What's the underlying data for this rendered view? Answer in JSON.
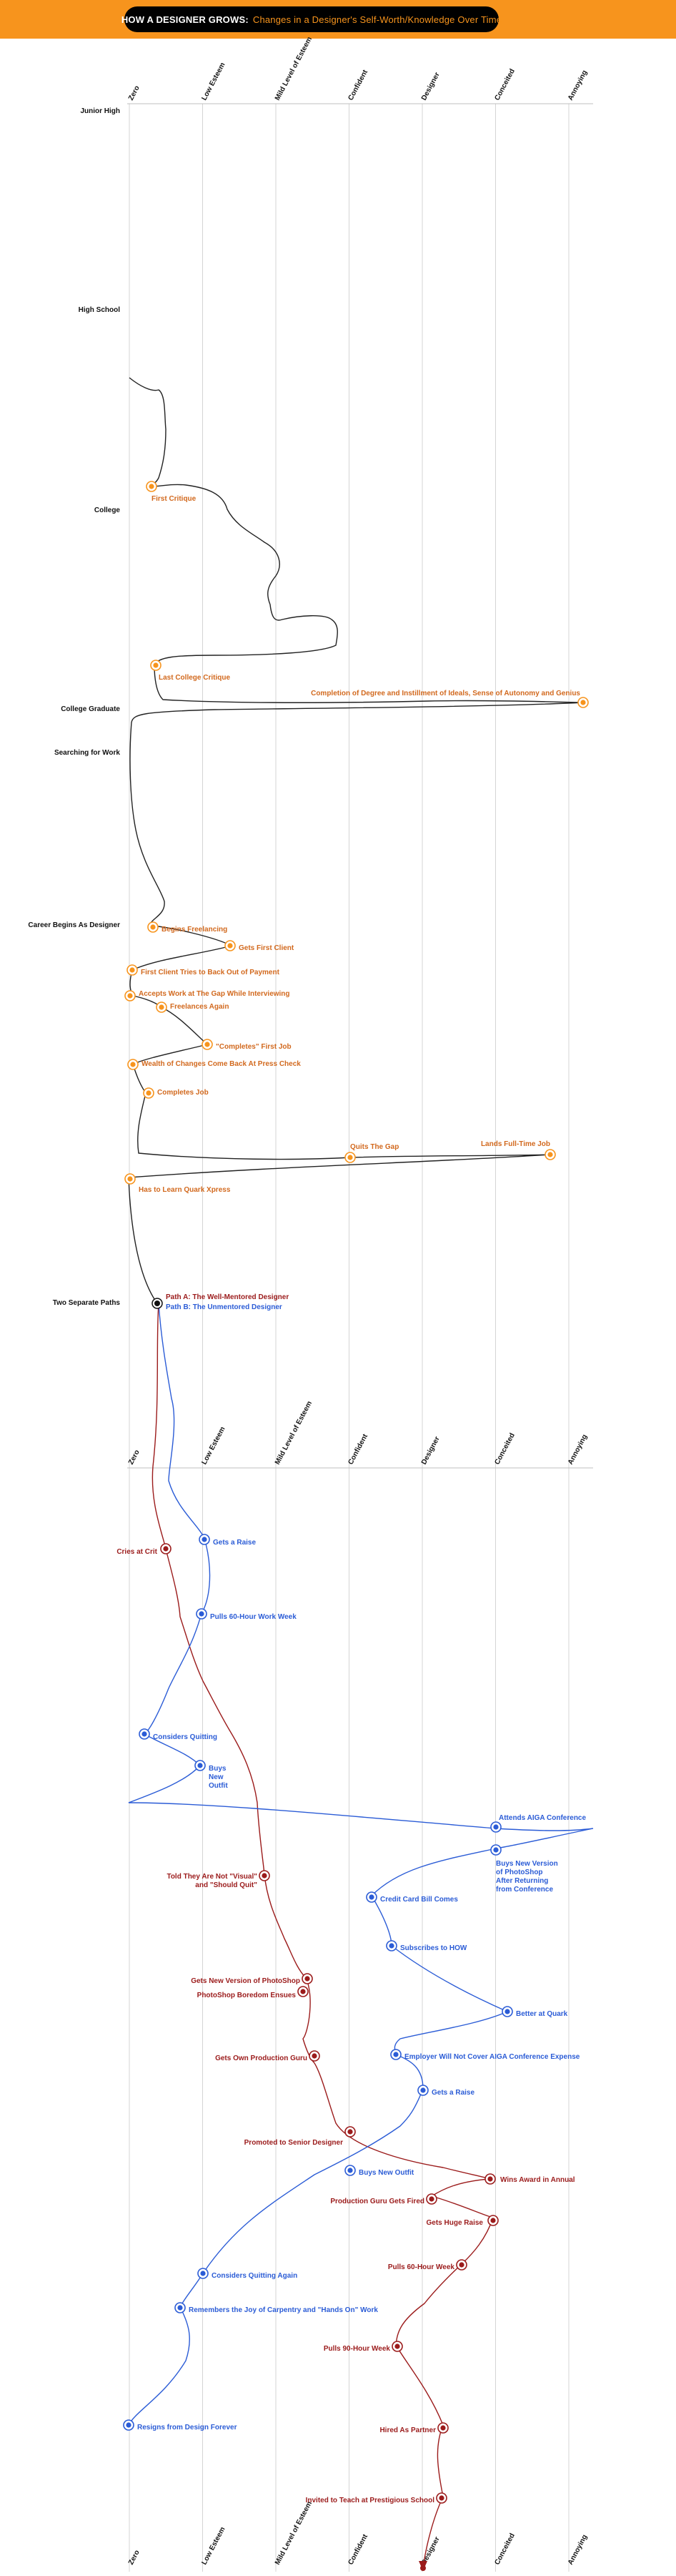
{
  "header": {
    "title": "HOW A DESIGNER GROWS:",
    "subtitle": "Changes in a Designer's Self-Worth/Knowledge Over Time"
  },
  "colors": {
    "banner": "#F7941D",
    "phase1_marker": "#F7941D",
    "phase1_text": "#D2691E",
    "path_a": "#9B1B1B",
    "path_b": "#2B5CD6"
  },
  "chart_data": {
    "type": "line",
    "title": "HOW A DESIGNER GROWS: Changes in a Designer's Self-Worth/Knowledge Over Time",
    "x_levels": [
      "Zero",
      "Low Esteem",
      "Mild Level of Esteem",
      "Confident",
      "Designer",
      "Conceited",
      "Annoying"
    ],
    "xlim": [
      0,
      6
    ],
    "y_axis_direction": "time flows downward",
    "life_stages": [
      "Junior High",
      "High School",
      "College",
      "College Graduate",
      "Searching for Work",
      "Career Begins As Designer",
      "Two Separate Paths"
    ],
    "series": [
      {
        "name": "Early Career",
        "events": [
          {
            "label": "First Critique",
            "value": 0.3
          },
          {
            "label": "Last College Critique",
            "value": 0.35
          },
          {
            "label": "Completion of Degree and Instillment of Ideals, Sense of Autonomy and Genius",
            "value": 6.0
          },
          {
            "label": "Begins Freelancing",
            "value": 0.3
          },
          {
            "label": "Gets First Client",
            "value": 1.35
          },
          {
            "label": "First Client Tries to Back Out of Payment",
            "value": 0.05
          },
          {
            "label": "Accepts Work at The Gap While Interviewing",
            "value": 0.0
          },
          {
            "label": "Freelances Again",
            "value": 0.45
          },
          {
            "label": "\"Completes\" First Job",
            "value": 1.05
          },
          {
            "label": "Wealth of Changes Come Back At Press Check",
            "value": 0.05
          },
          {
            "label": "Completes Job",
            "value": 0.25
          },
          {
            "label": "Quits The Gap",
            "value": 2.95
          },
          {
            "label": "Lands Full-Time Job",
            "value": 5.7
          },
          {
            "label": "Has to Learn Quark Xpress",
            "value": 0.0
          },
          {
            "label": "Two Separate Paths",
            "value": 0.4
          }
        ]
      },
      {
        "name": "Path A: The Well-Mentored Designer",
        "events": [
          {
            "label": "Cries at Crit",
            "value": 0.5
          },
          {
            "label": "Told They Are Not \"Visual\" and \"Should Quit\"",
            "value": 1.8
          },
          {
            "label": "Gets New Version of PhotoShop",
            "value": 2.4
          },
          {
            "label": "PhotoShop Boredom Ensues",
            "value": 2.35
          },
          {
            "label": "Gets Own Production Guru",
            "value": 2.5
          },
          {
            "label": "Promoted to Senior Designer",
            "value": 2.95
          },
          {
            "label": "Wins Award in Annual",
            "value": 4.9
          },
          {
            "label": "Production Guru Gets Fired",
            "value": 4.1
          },
          {
            "label": "Gets Huge Raise",
            "value": 4.95
          },
          {
            "label": "Pulls 60-Hour Week",
            "value": 4.55
          },
          {
            "label": "Pulls 90-Hour Week",
            "value": 3.6
          },
          {
            "label": "Hired As Partner",
            "value": 4.2
          },
          {
            "label": "Invited to Teach at Prestigious School",
            "value": 4.2
          },
          {
            "label": "Designer",
            "value": 3.95
          }
        ]
      },
      {
        "name": "Path B: The Unmentored Designer",
        "events": [
          {
            "label": "Gets a Raise",
            "value": 1.0
          },
          {
            "label": "Pulls 60-Hour Work Week",
            "value": 0.95
          },
          {
            "label": "Considers Quitting",
            "value": 0.2
          },
          {
            "label": "Buys New Outfit",
            "value": 0.95
          },
          {
            "label": "Attends AIGA Conference",
            "value": 5.0
          },
          {
            "label": "Buys New Version of PhotoShop After Returning from Conference",
            "value": 5.0
          },
          {
            "label": "Credit Card Bill Comes",
            "value": 3.2
          },
          {
            "label": "Subscribes to HOW",
            "value": 3.5
          },
          {
            "label": "Better at Quark",
            "value": 5.15
          },
          {
            "label": "Employer Will Not Cover AIGA Conference Expense",
            "value": 3.65
          },
          {
            "label": "Gets a Raise",
            "value": 3.95
          },
          {
            "label": "Buys New Outfit",
            "value": 2.95
          },
          {
            "label": "Considers Quitting Again",
            "value": 1.0
          },
          {
            "label": "Remembers the Joy of Carpentry and \"Hands On\" Work",
            "value": 0.65
          },
          {
            "label": "Resigns from Design Forever",
            "value": 0.0
          }
        ]
      }
    ]
  }
}
